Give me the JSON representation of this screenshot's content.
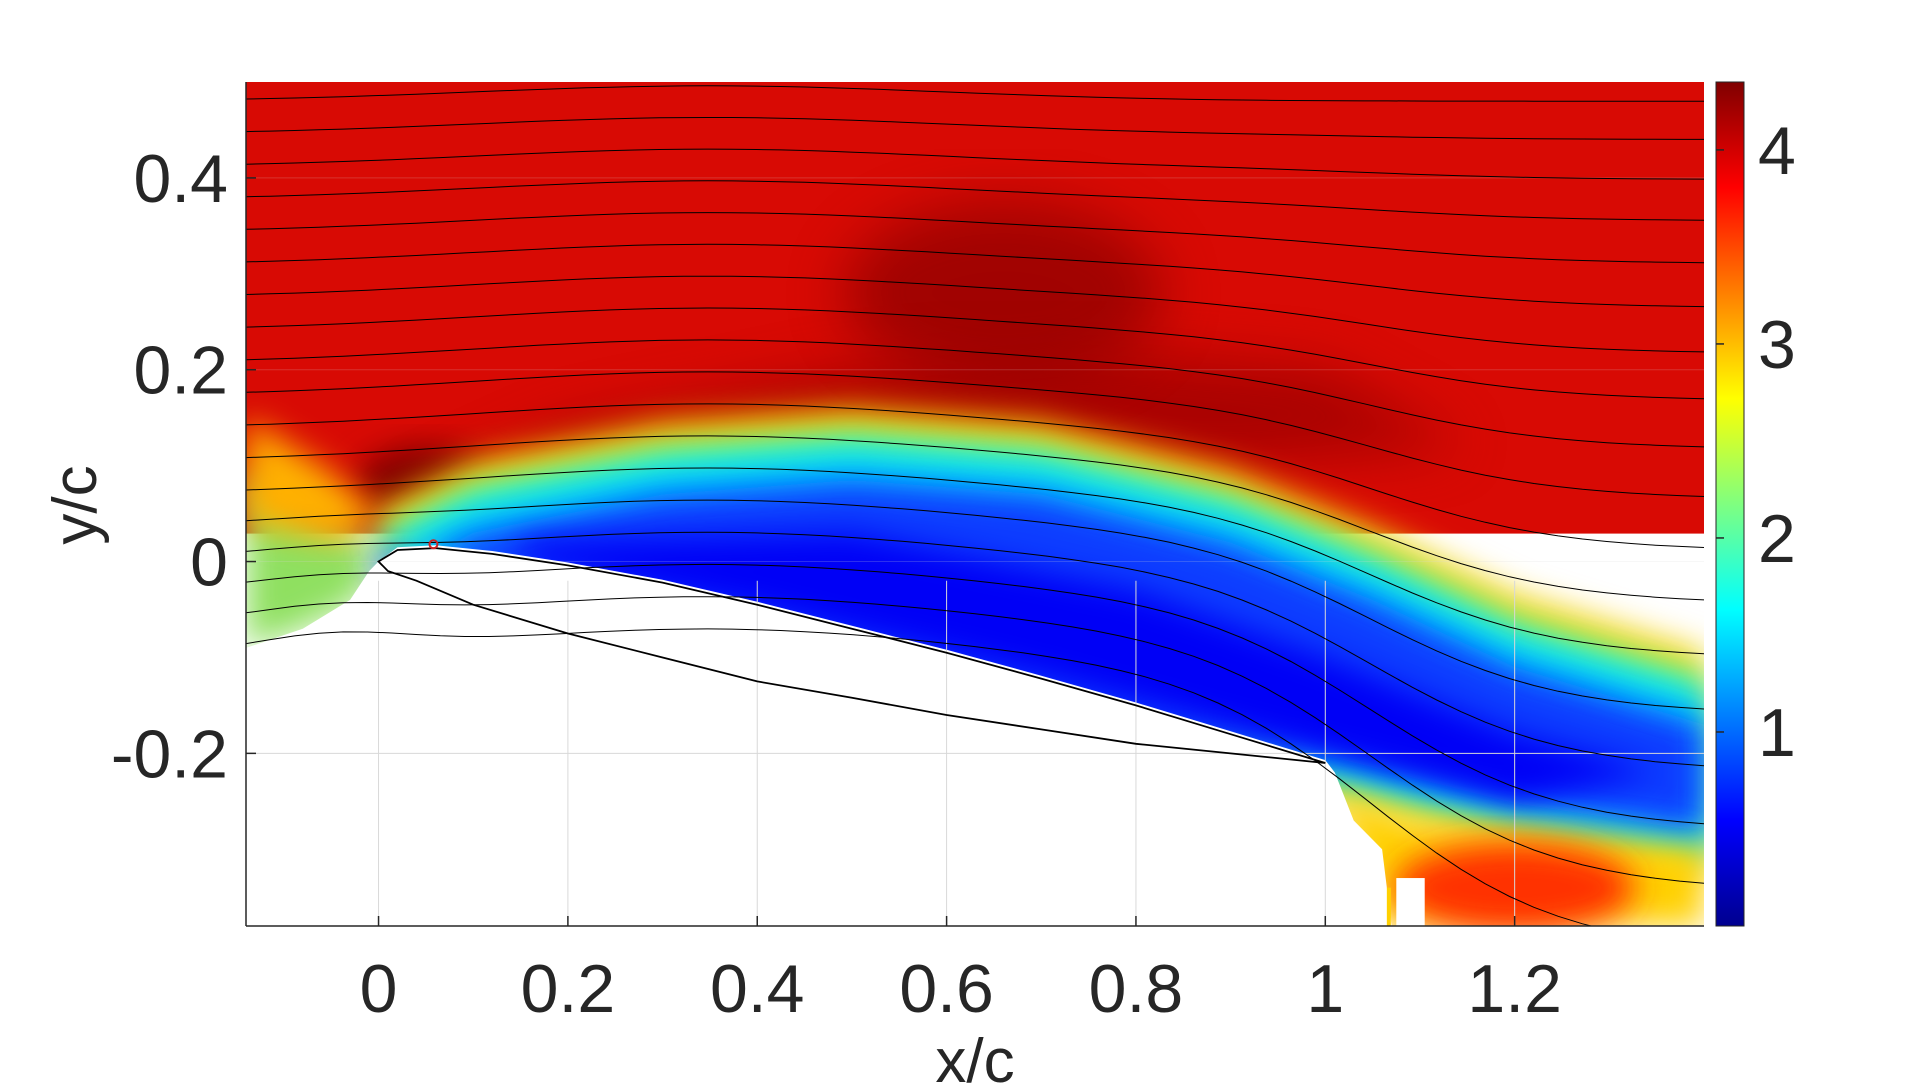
{
  "chart_data": {
    "type": "heatmap",
    "xlabel": "x/c",
    "ylabel": "y/c",
    "xlim": [
      -0.14,
      1.4
    ],
    "ylim": [
      -0.38,
      0.5
    ],
    "x_ticks": [
      0,
      0.2,
      0.4,
      0.6,
      0.8,
      1,
      1.2
    ],
    "x_tick_labels": [
      "0",
      "0.2",
      "0.4",
      "0.6",
      "0.8",
      "1",
      "1.2"
    ],
    "y_ticks": [
      -0.2,
      0,
      0.2,
      0.4
    ],
    "y_tick_labels": [
      "-0.2",
      "0",
      "0.2",
      "0.4"
    ],
    "grid": true,
    "colormap": "jet",
    "colorbar": {
      "range": [
        0,
        4.35
      ],
      "ticks": [
        1,
        2,
        3,
        4
      ],
      "tick_labels": [
        "1",
        "2",
        "3",
        "4"
      ]
    },
    "colors": {
      "jet_stops": [
        "#00008f",
        "#0000ff",
        "#00ffff",
        "#ffff00",
        "#ff0000",
        "#800000"
      ],
      "freestream": "#d80a04",
      "wake_core": "#0a1ad0",
      "streamline": "#000000",
      "airfoil_outline": "#000000",
      "marker": "#cc2222"
    },
    "airfoil": {
      "leading_edge": [
        0,
        0
      ],
      "trailing_edge": [
        1,
        -0.21
      ],
      "upper_surface": [
        [
          0,
          0
        ],
        [
          0.02,
          0.012
        ],
        [
          0.06,
          0.014
        ],
        [
          0.12,
          0.008
        ],
        [
          0.2,
          -0.004
        ],
        [
          0.3,
          -0.022
        ],
        [
          0.4,
          -0.045
        ],
        [
          0.5,
          -0.07
        ],
        [
          0.6,
          -0.095
        ],
        [
          0.7,
          -0.122
        ],
        [
          0.8,
          -0.15
        ],
        [
          0.9,
          -0.18
        ],
        [
          1,
          -0.21
        ]
      ],
      "lower_surface": [
        [
          1,
          -0.21
        ],
        [
          0.9,
          -0.2
        ],
        [
          0.8,
          -0.19
        ],
        [
          0.7,
          -0.175
        ],
        [
          0.6,
          -0.16
        ],
        [
          0.5,
          -0.142
        ],
        [
          0.4,
          -0.125
        ],
        [
          0.3,
          -0.1
        ],
        [
          0.2,
          -0.075
        ],
        [
          0.1,
          -0.045
        ],
        [
          0.04,
          -0.02
        ],
        [
          0.01,
          -0.01
        ],
        [
          0,
          0
        ]
      ]
    },
    "marker_point": [
      0.058,
      0.018
    ],
    "streamline_count": 18,
    "regions": [
      {
        "name": "freestream",
        "value": 4.1
      },
      {
        "name": "leading-edge-acceleration",
        "value": 4.35,
        "x": 0.05,
        "y": 0.08
      },
      {
        "name": "separated-wake",
        "value": 0.5
      },
      {
        "name": "lower-wake-recovery",
        "value": 3.6,
        "x": 1.2,
        "y": -0.33
      }
    ]
  }
}
